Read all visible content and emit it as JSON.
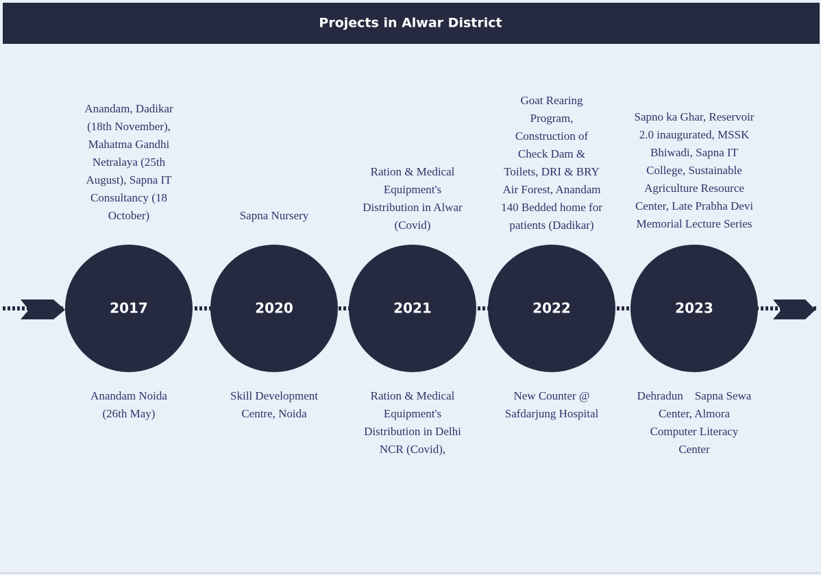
{
  "header": {
    "title": "Projects in Alwar District"
  },
  "timeline": [
    {
      "year": "2017",
      "above": [
        "Anandam, Dadikar",
        "(18th November),",
        "Mahatma Gandhi",
        "Netralaya (25th",
        "August), Sapna IT",
        "Consultancy (18",
        "October)"
      ],
      "below": [
        "Anandam Noida",
        "(26th May)"
      ]
    },
    {
      "year": "2020",
      "above": [
        "Sapna Nursery"
      ],
      "below": [
        "Skill Development",
        "Centre, Noida"
      ]
    },
    {
      "year": "2021",
      "above": [
        "Ration & Medical",
        "Equipment's",
        "Distribution in Alwar",
        "(Covid)"
      ],
      "below": [
        "Ration & Medical",
        "Equipment's",
        "Distribution in Delhi",
        "NCR (Covid),"
      ]
    },
    {
      "year": "2022",
      "above": [
        "Goat Rearing",
        "Program,",
        "Construction of",
        "Check Dam &",
        "Toilets, DRI & BRY",
        "Air Forest, Anandam",
        "140 Bedded home for",
        "patients (Dadikar)"
      ],
      "below": [
        "New Counter @",
        "Safdarjung Hospital"
      ]
    },
    {
      "year": "2023",
      "above": [
        "Sapno ka Ghar, Reservoir",
        "2.0 inaugurated, MSSK",
        "Bhiwadi, Sapna IT",
        "College, Sustainable",
        "Agriculture Resource",
        "Center, Late Prabha Devi",
        "Memorial Lecture Series"
      ],
      "below": [
        "Dehradun    Sapna Sewa",
        "Center, Almora",
        "Computer Literacy",
        "Center"
      ]
    }
  ]
}
